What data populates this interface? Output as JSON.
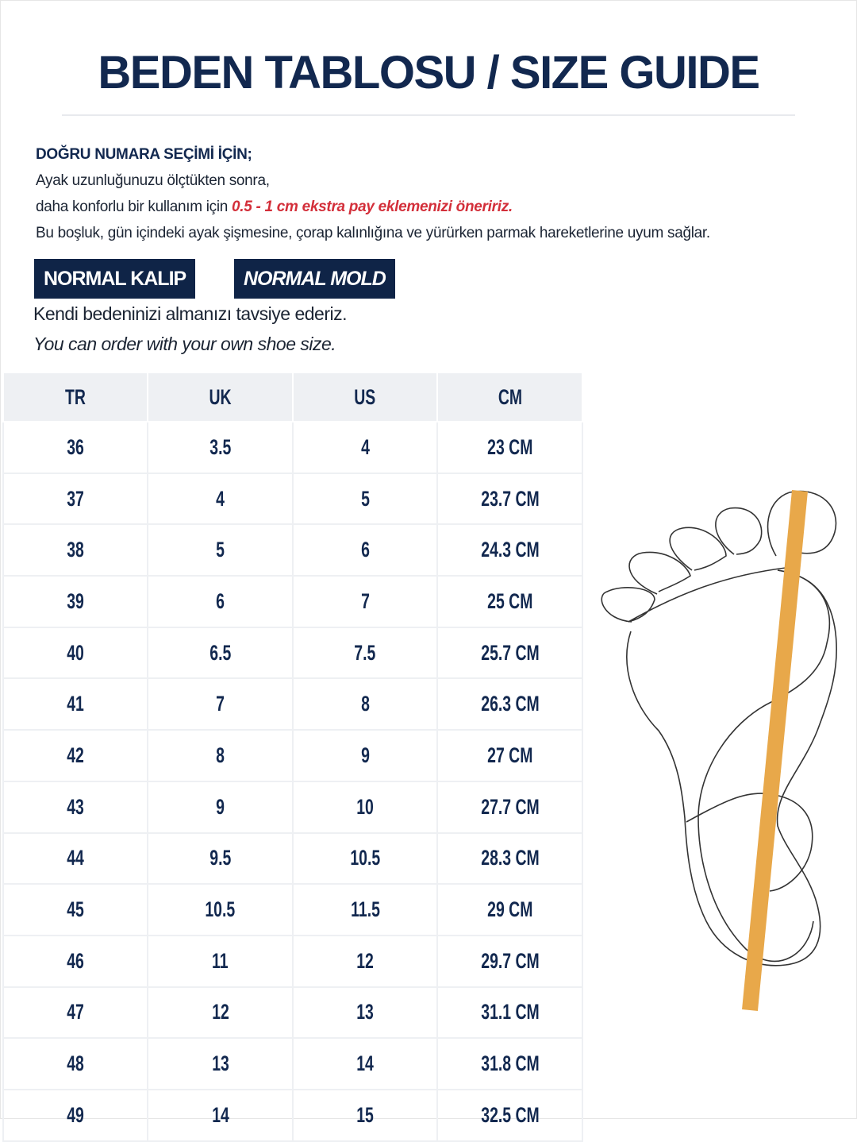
{
  "title": "BEDEN TABLOSU / SIZE GUIDE",
  "intro": {
    "heading": "DOĞRU NUMARA SEÇİMİ İÇİN;",
    "line1": "Ayak uzunluğunuzu ölçtükten sonra,",
    "line2_prefix": "daha konforlu bir kullanım için ",
    "line2_highlight": "0.5 - 1 cm ekstra pay eklemenizi öneririz.",
    "line3": "Bu boşluk, gün içindeki ayak şişmesine, çorap kalınlığına ve yürürken parmak hareketlerine uyum sağlar."
  },
  "badges": [
    "NORMAL KALIP",
    "NORMAL MOLD"
  ],
  "recommendation_tr": "Kendi bedeninizi almanızı tavsiye ederiz.",
  "recommendation_en": "You can order with your own shoe size.",
  "colors": {
    "navy": "#0f2447",
    "highlight_red": "#d32f3a",
    "measure_bar": "#e8a84a"
  },
  "table": {
    "headers": [
      "TR",
      "UK",
      "US",
      "CM"
    ],
    "rows": [
      [
        "36",
        "3.5",
        "4",
        "23 CM"
      ],
      [
        "37",
        "4",
        "5",
        "23.7 CM"
      ],
      [
        "38",
        "5",
        "6",
        "24.3 CM"
      ],
      [
        "39",
        "6",
        "7",
        "25 CM"
      ],
      [
        "40",
        "6.5",
        "7.5",
        "25.7 CM"
      ],
      [
        "41",
        "7",
        "8",
        "26.3 CM"
      ],
      [
        "42",
        "8",
        "9",
        "27 CM"
      ],
      [
        "43",
        "9",
        "10",
        "27.7 CM"
      ],
      [
        "44",
        "9.5",
        "10.5",
        "28.3 CM"
      ],
      [
        "45",
        "10.5",
        "11.5",
        "29 CM"
      ],
      [
        "46",
        "11",
        "12",
        "29.7 CM"
      ],
      [
        "47",
        "12",
        "13",
        "31.1 CM"
      ],
      [
        "48",
        "13",
        "14",
        "31.8 CM"
      ],
      [
        "49",
        "14",
        "15",
        "32.5 CM"
      ]
    ]
  },
  "illustration": "foot-measure-icon"
}
